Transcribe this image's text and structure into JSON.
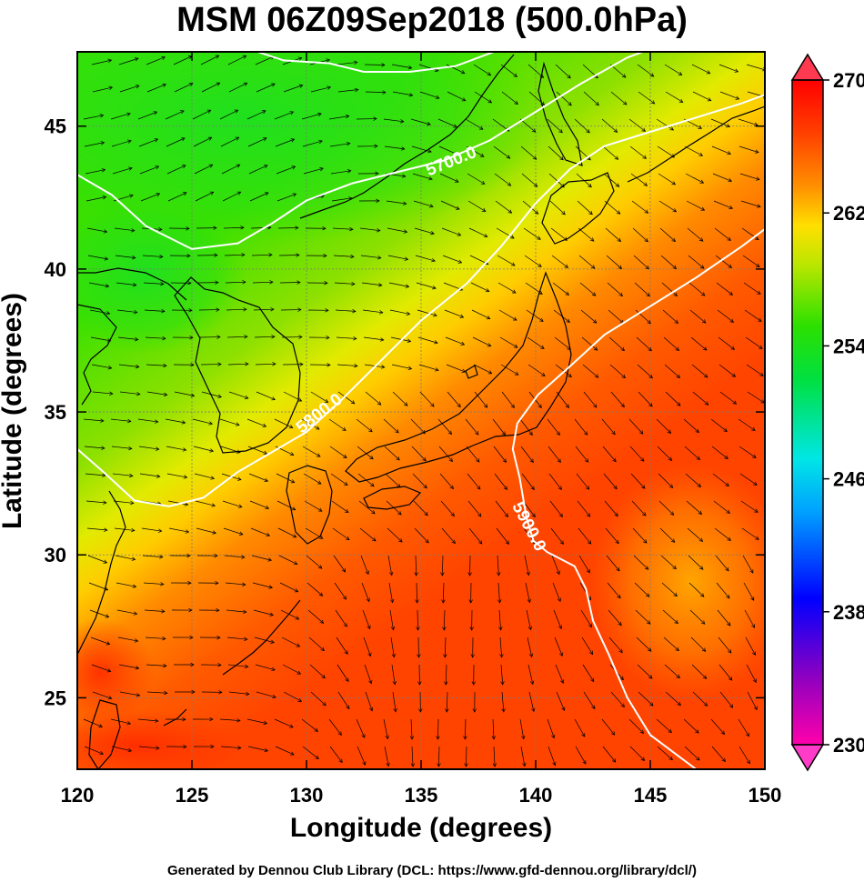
{
  "title": "MSM 06Z09Sep2018 (500.0hPa)",
  "x_axis_label": "Longitude (degrees)",
  "y_axis_label": "Latitude  (degrees)",
  "credit": "Generated by Dennou Club Library (DCL: https://www.gfd-dennou.org/library/dcl/)",
  "chart_data": {
    "type": "heatmap",
    "x_range": [
      120,
      150
    ],
    "y_range": [
      22.5,
      47.6
    ],
    "x_ticks": [
      "120",
      "125",
      "130",
      "135",
      "140",
      "145",
      "150"
    ],
    "y_ticks": [
      "25",
      "30",
      "35",
      "40",
      "45"
    ],
    "x_tick_values": [
      120,
      125,
      130,
      135,
      140,
      145,
      150
    ],
    "y_tick_values": [
      25,
      30,
      35,
      40,
      45
    ],
    "colorbar": {
      "range": [
        230,
        270
      ],
      "labels": [
        "270",
        "262",
        "254",
        "246",
        "238",
        "230"
      ],
      "label_values": [
        270,
        262,
        254,
        246,
        238,
        230
      ]
    },
    "contour_labels": [
      {
        "text": "5700.0",
        "lon": 136.4,
        "lat": 43.6,
        "angle": -22
      },
      {
        "text": "5800.0",
        "lon": 130.7,
        "lat": 34.8,
        "angle": -38
      },
      {
        "text": "5900.0",
        "lon": 139.5,
        "lat": 30.9,
        "angle": 62
      }
    ],
    "contours": [
      {
        "level": "5700.0",
        "points": [
          [
            120,
            43.3
          ],
          [
            121.5,
            42.6
          ],
          [
            123,
            41.5
          ],
          [
            125,
            40.7
          ],
          [
            127,
            40.9
          ],
          [
            128.5,
            41.6
          ],
          [
            130,
            42.4
          ],
          [
            132,
            43.0
          ],
          [
            134,
            43.4
          ],
          [
            136,
            43.8
          ],
          [
            138,
            44.5
          ],
          [
            140,
            45.5
          ],
          [
            142,
            46.5
          ],
          [
            144,
            47.4
          ],
          [
            145,
            47.7
          ]
        ]
      },
      {
        "level": "5700.0",
        "points": [
          [
            127.5,
            47.7
          ],
          [
            129,
            47.3
          ],
          [
            131,
            47.2
          ],
          [
            132.5,
            46.9
          ],
          [
            134.5,
            46.9
          ],
          [
            136.5,
            47.1
          ],
          [
            138.5,
            47.7
          ]
        ]
      },
      {
        "level": "5800.0",
        "points": [
          [
            120,
            33.7
          ],
          [
            121,
            33.0
          ],
          [
            122.5,
            31.9
          ],
          [
            124,
            31.7
          ],
          [
            125.5,
            32.0
          ],
          [
            127,
            32.9
          ],
          [
            128.5,
            33.6
          ],
          [
            130,
            34.3
          ],
          [
            131.5,
            35.4
          ],
          [
            133,
            36.6
          ],
          [
            135,
            38.2
          ],
          [
            137,
            39.5
          ],
          [
            138.5,
            40.8
          ],
          [
            140,
            42.3
          ],
          [
            141.5,
            43.5
          ],
          [
            143,
            44.3
          ],
          [
            145,
            44.8
          ],
          [
            147,
            45.3
          ],
          [
            149,
            45.8
          ],
          [
            150,
            46.1
          ]
        ]
      },
      {
        "level": "5900.0",
        "points": [
          [
            147,
            22.5
          ],
          [
            145,
            23.7
          ],
          [
            144,
            25.0
          ],
          [
            143.2,
            26.5
          ],
          [
            142.5,
            27.7
          ],
          [
            142.2,
            28.8
          ],
          [
            141.7,
            29.6
          ],
          [
            140.5,
            30.1
          ],
          [
            139.9,
            30.5
          ],
          [
            139.6,
            31.3
          ],
          [
            139.3,
            32.7
          ],
          [
            139.0,
            33.7
          ],
          [
            139.2,
            34.6
          ],
          [
            140.1,
            35.6
          ],
          [
            141.5,
            36.6
          ],
          [
            143,
            37.7
          ],
          [
            145,
            38.7
          ],
          [
            147,
            39.7
          ],
          [
            149,
            40.8
          ],
          [
            150,
            41.4
          ]
        ]
      }
    ],
    "colors": {
      "stops": [
        "#ff00aa",
        "#9000c0",
        "#0000ff",
        "#00a0ff",
        "#00e6e6",
        "#00e040",
        "#2ce000",
        "#b8e600",
        "#ffe000",
        "#ff9000",
        "#ff4000",
        "#ff0000"
      ],
      "contour": "#ffffff",
      "coast": "#000000",
      "arrow": "#000000"
    }
  }
}
